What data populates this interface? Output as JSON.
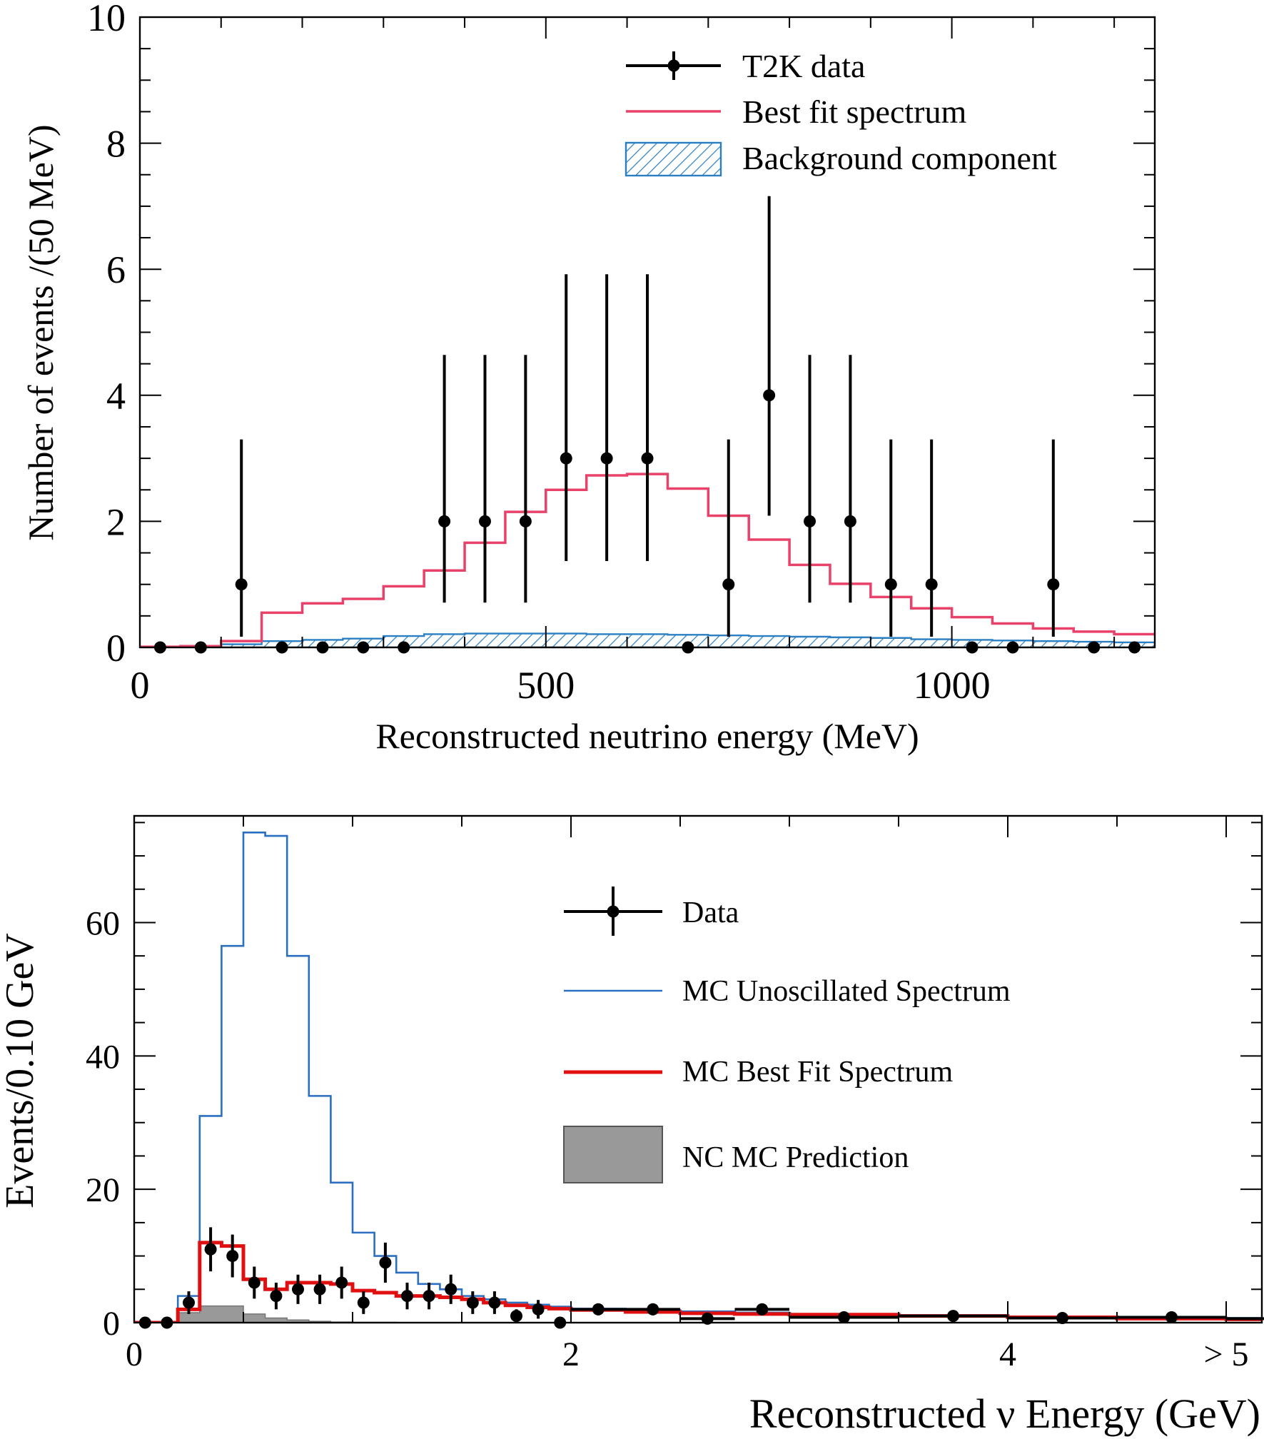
{
  "chart_data": [
    {
      "type": "histogram",
      "xlabel": "Reconstructed neutrino energy (MeV)",
      "ylabel": "Number of events /(50 MeV)",
      "xlim": [
        0,
        1250
      ],
      "ylim": [
        0,
        10
      ],
      "x_ticks": [
        "0",
        "500",
        "1000"
      ],
      "y_ticks": [
        "0",
        "2",
        "4",
        "6",
        "8",
        "10"
      ],
      "x_tick_values": [
        0,
        500,
        1000
      ],
      "y_tick_values": [
        0,
        2,
        4,
        6,
        8,
        10
      ],
      "legend_position": "top-right",
      "legend": {
        "data": "T2K data",
        "fit": "Best fit spectrum",
        "background": "Background component"
      },
      "colors": {
        "data": "#000000",
        "fit": "#e8416a",
        "background": "#2a7ec2"
      },
      "bin_edges": [
        0,
        50,
        100,
        150,
        200,
        250,
        300,
        350,
        400,
        450,
        500,
        550,
        600,
        650,
        700,
        750,
        800,
        850,
        900,
        950,
        1000,
        1050,
        1100,
        1150,
        1200,
        1250
      ],
      "data_points": {
        "x": [
          25,
          75,
          125,
          175,
          225,
          275,
          325,
          375,
          425,
          475,
          525,
          575,
          625,
          675,
          725,
          775,
          825,
          875,
          925,
          975,
          1025,
          1075,
          1125,
          1175,
          1225
        ],
        "y": [
          0,
          0,
          1,
          0,
          0,
          0,
          0,
          2,
          2,
          2,
          3,
          3,
          3,
          0,
          1,
          4,
          2,
          2,
          1,
          1,
          0,
          0,
          1,
          0,
          0
        ],
        "err_low": [
          0,
          0,
          0.83,
          0,
          0,
          0,
          0,
          1.29,
          1.29,
          1.29,
          1.63,
          1.63,
          1.63,
          0,
          0.83,
          1.91,
          1.29,
          1.29,
          0.83,
          0.83,
          0,
          0,
          0.83,
          0,
          0
        ],
        "err_high": [
          0,
          0,
          2.3,
          0,
          0,
          0,
          0,
          2.64,
          2.64,
          2.64,
          2.92,
          2.92,
          2.92,
          0,
          2.3,
          3.16,
          2.64,
          2.64,
          2.3,
          2.3,
          0,
          0,
          2.3,
          0,
          0
        ]
      },
      "best_fit": [
        0.01,
        0.02,
        0.1,
        0.55,
        0.7,
        0.77,
        0.97,
        1.22,
        1.66,
        2.15,
        2.5,
        2.73,
        2.75,
        2.52,
        2.09,
        1.71,
        1.31,
        1.01,
        0.8,
        0.62,
        0.48,
        0.38,
        0.3,
        0.25,
        0.21
      ],
      "background": [
        0.005,
        0.01,
        0.05,
        0.1,
        0.12,
        0.14,
        0.18,
        0.21,
        0.22,
        0.22,
        0.22,
        0.21,
        0.21,
        0.2,
        0.19,
        0.18,
        0.17,
        0.16,
        0.15,
        0.13,
        0.12,
        0.11,
        0.1,
        0.09,
        0.08
      ]
    },
    {
      "type": "histogram",
      "xlabel": "Reconstructed ν Energy (GeV)",
      "ylabel": "Events/0.10 GeV",
      "xlim": [
        0,
        5.5
      ],
      "ylim": [
        0,
        76
      ],
      "x_ticks": [
        "0",
        "2",
        "4",
        "> 5"
      ],
      "x_tick_values": [
        0,
        2,
        4,
        5
      ],
      "y_ticks": [
        "0",
        "20",
        "40",
        "60"
      ],
      "y_tick_values": [
        0,
        20,
        40,
        60
      ],
      "legend_position": "right",
      "legend": {
        "data": "Data",
        "unosc": "MC Unoscillated Spectrum",
        "bestfit": "MC Best Fit Spectrum",
        "nc": "NC MC Prediction"
      },
      "colors": {
        "data": "#000000",
        "unosc": "#2a6fc2",
        "bestfit": "#e01010",
        "nc": "#999999"
      },
      "bin_edges": [
        0,
        0.1,
        0.2,
        0.3,
        0.4,
        0.5,
        0.6,
        0.7,
        0.8,
        0.9,
        1.0,
        1.1,
        1.2,
        1.3,
        1.4,
        1.5,
        1.6,
        1.7,
        1.8,
        1.9,
        2.0,
        2.25,
        2.5,
        2.75,
        3.0,
        3.5,
        4.0,
        4.5,
        5.0,
        5.5
      ],
      "unoscillated": [
        0,
        0,
        4,
        31,
        56.5,
        73.5,
        73,
        55,
        34,
        21,
        13.5,
        10,
        7.5,
        5.8,
        5,
        4,
        3.5,
        3,
        2.7,
        2.4,
        2.1,
        1.9,
        1.7,
        1.5,
        1.3,
        1.1,
        0.9,
        0.8,
        0.7
      ],
      "best_fit": [
        0,
        0,
        2,
        12,
        11.5,
        6.5,
        5,
        6,
        6,
        5.8,
        4.8,
        4.5,
        4,
        4,
        3.8,
        3.5,
        3,
        2.6,
        2.3,
        2.1,
        1.9,
        1.6,
        1.4,
        1.3,
        1.2,
        1,
        0.8,
        0.6,
        0.5
      ],
      "nc": [
        0,
        0,
        1.5,
        2.5,
        2.5,
        1.3,
        0.7,
        0.4,
        0.2,
        0.1,
        0.05,
        0.05,
        0,
        0,
        0,
        0,
        0,
        0,
        0,
        0,
        0,
        0,
        0,
        0,
        0,
        0,
        0,
        0,
        0
      ],
      "data_points": {
        "x": [
          0.05,
          0.15,
          0.25,
          0.35,
          0.45,
          0.55,
          0.65,
          0.75,
          0.85,
          0.95,
          1.05,
          1.15,
          1.25,
          1.35,
          1.45,
          1.55,
          1.65,
          1.75,
          1.85,
          1.95,
          2.125,
          2.375,
          2.625,
          2.875,
          3.25,
          3.75,
          4.25,
          4.75,
          5.25
        ],
        "y": [
          0,
          0,
          3,
          11,
          10,
          6,
          4,
          5,
          5,
          6,
          3,
          9,
          4,
          4,
          5,
          3,
          3,
          1,
          2,
          0,
          2,
          2,
          0.6,
          2,
          0.8,
          1,
          0.7,
          0.8,
          0.6
        ],
        "err": [
          0,
          0,
          1.7,
          3.3,
          3.2,
          2.4,
          2,
          2.2,
          2.2,
          2.4,
          1.7,
          3,
          2,
          2,
          2.2,
          1.7,
          1.7,
          1,
          1.4,
          0,
          0.9,
          0.9,
          0.5,
          0.9,
          0.4,
          0.5,
          0.4,
          0.4,
          0.4
        ],
        "xerr": [
          0,
          0,
          0,
          0,
          0,
          0,
          0,
          0,
          0,
          0,
          0,
          0,
          0,
          0,
          0,
          0,
          0,
          0,
          0,
          0,
          0.125,
          0.125,
          0.125,
          0.125,
          0.25,
          0.25,
          0.25,
          0.25,
          0.25
        ]
      }
    }
  ]
}
